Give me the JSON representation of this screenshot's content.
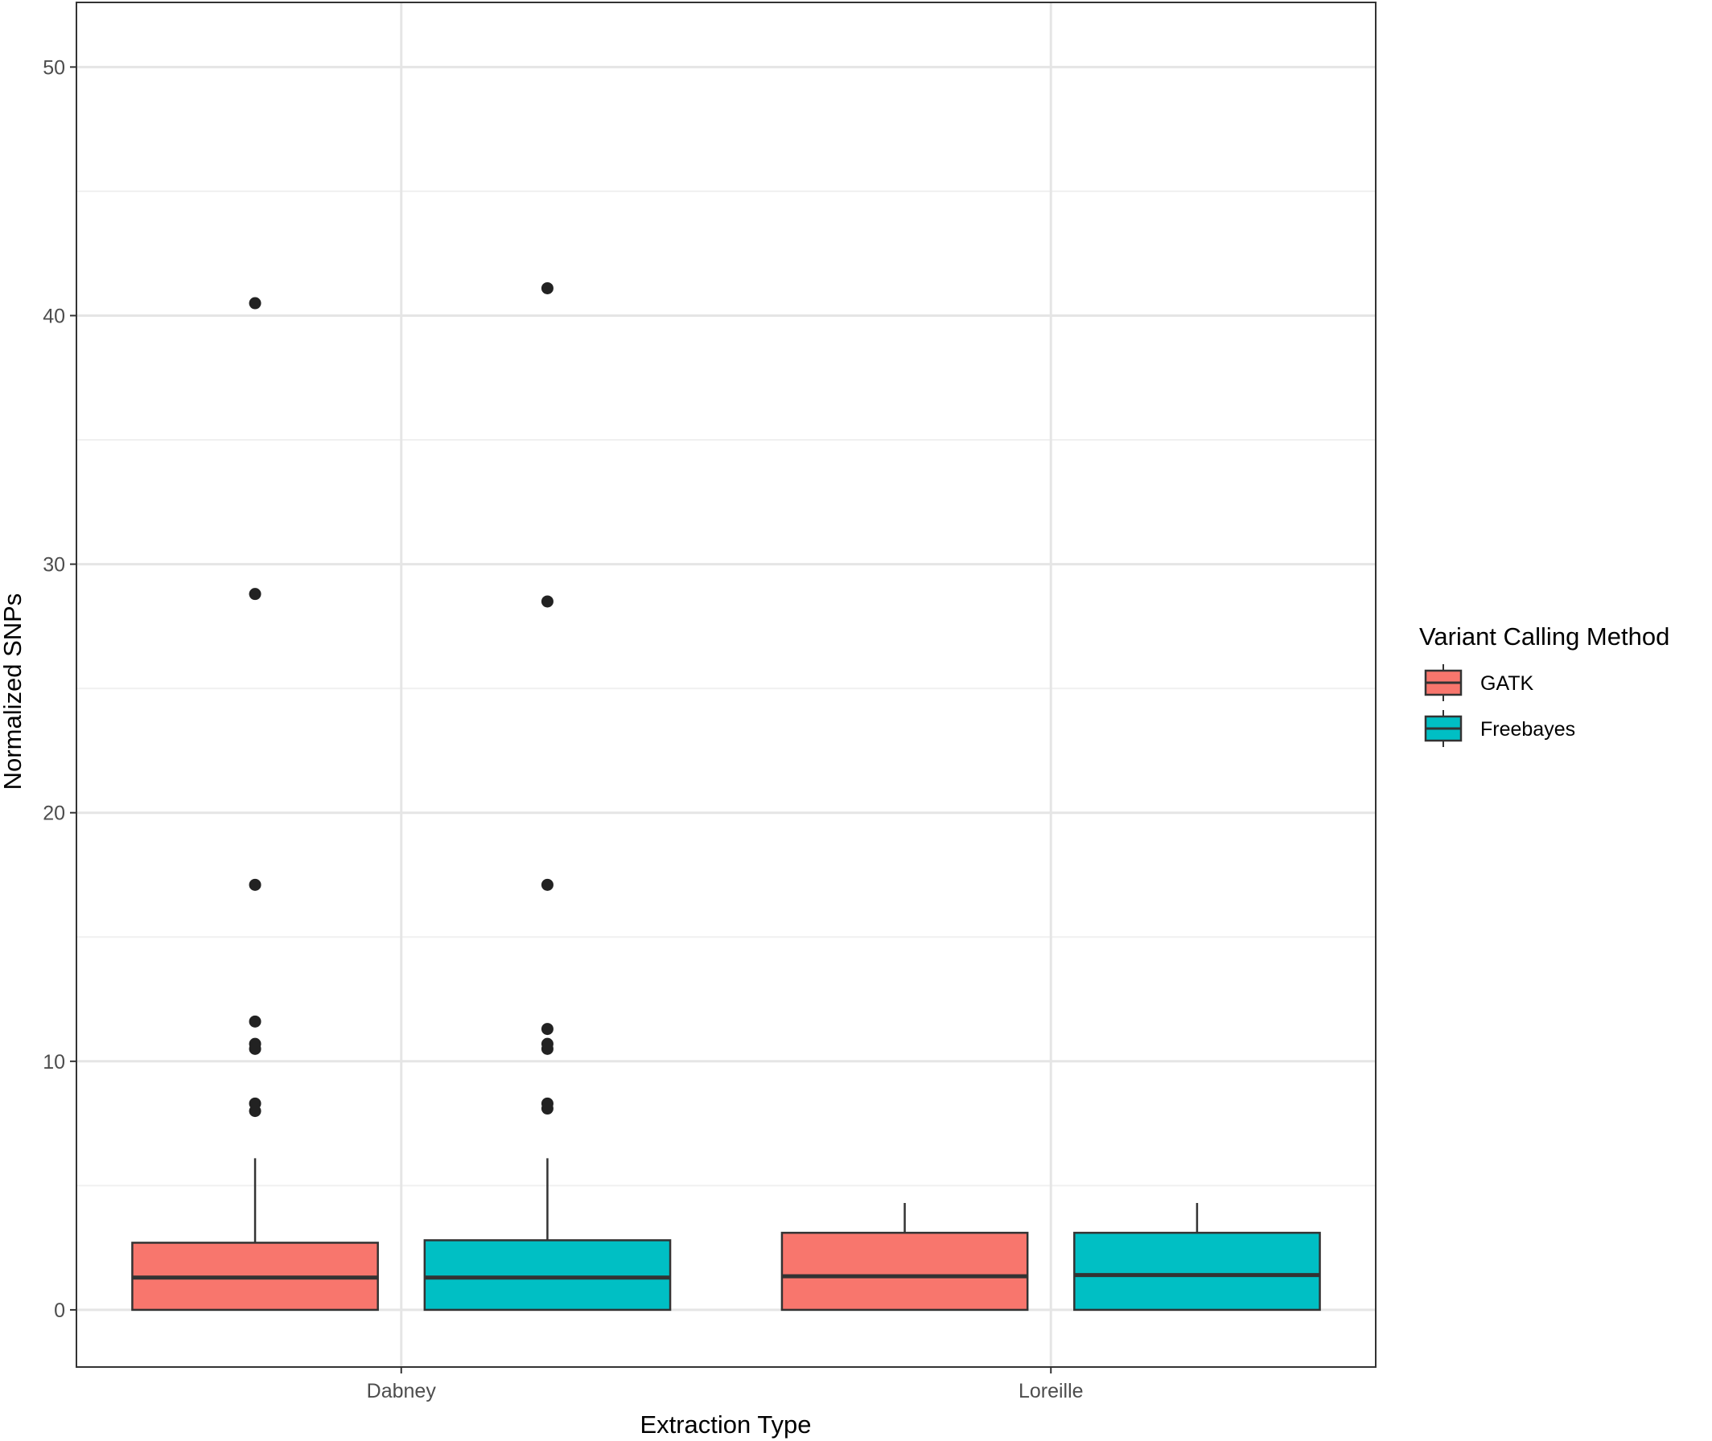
{
  "chart_data": {
    "type": "boxplot",
    "xlabel": "Extraction Type",
    "ylabel": "Normalized SNPs",
    "categories": [
      "Dabney",
      "Loreille"
    ],
    "ylim": [
      -2.3,
      52.6
    ],
    "yticks": [
      0,
      10,
      20,
      30,
      40,
      50
    ],
    "grid": true,
    "legend": {
      "title": "Variant Calling Method",
      "position": "right",
      "entries": [
        "GATK",
        "Freebayes"
      ]
    },
    "series": [
      {
        "name": "GATK",
        "color": "#F8766D",
        "boxes": [
          {
            "category": "Dabney",
            "whisker_low": 0,
            "q1": 0,
            "median": 1.3,
            "q3": 2.7,
            "whisker_high": 6.1,
            "outliers": [
              8.0,
              8.3,
              10.5,
              10.7,
              11.6,
              17.1,
              28.8,
              40.5
            ]
          },
          {
            "category": "Loreille",
            "whisker_low": 0,
            "q1": 0,
            "median": 1.35,
            "q3": 3.1,
            "whisker_high": 4.3,
            "outliers": []
          }
        ]
      },
      {
        "name": "Freebayes",
        "color": "#00BFC4",
        "boxes": [
          {
            "category": "Dabney",
            "whisker_low": 0,
            "q1": 0,
            "median": 1.3,
            "q3": 2.8,
            "whisker_high": 6.1,
            "outliers": [
              8.1,
              8.3,
              10.5,
              10.7,
              11.3,
              17.1,
              28.5,
              41.1
            ]
          },
          {
            "category": "Loreille",
            "whisker_low": 0,
            "q1": 0,
            "median": 1.4,
            "q3": 3.1,
            "whisker_high": 4.3,
            "outliers": []
          }
        ]
      }
    ]
  }
}
